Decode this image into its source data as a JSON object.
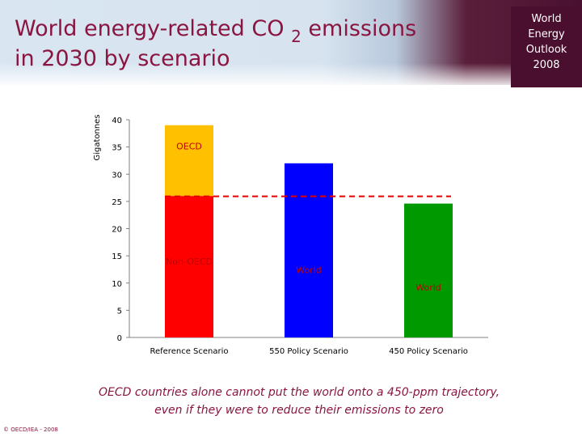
{
  "slide": {
    "title_part1": "World energy-related CO",
    "title_subscript": "2",
    "title_part2": "emissions",
    "title_line2": "in 2030 by scenario",
    "badge_lines": [
      "World",
      "Energy",
      "Outlook",
      "2008"
    ],
    "caption_line1": "OECD countries alone cannot put the world onto a 450-ppm trajectory,",
    "caption_line2": "even if they were to reduce their emissions to zero",
    "copyright": "© OECD/IEA - 2008",
    "colors": {
      "title": "#8a1540",
      "badge": "#4a0f2e",
      "non_oecd": "#ff0000",
      "oecd": "#ffc000",
      "world_550": "#0000ff",
      "world_450": "#009900",
      "reference_line": "#e00000"
    }
  },
  "chart_data": {
    "type": "bar",
    "title": "",
    "ylabel": "Gigatonnes",
    "xlabel": "",
    "ylim": [
      0,
      40
    ],
    "yticks": [
      0,
      5,
      10,
      15,
      20,
      25,
      30,
      35,
      40
    ],
    "grid": false,
    "categories": [
      "Reference Scenario",
      "550 Policy Scenario",
      "450 Policy Scenario"
    ],
    "stacks": [
      {
        "category": "Reference Scenario",
        "segments": [
          {
            "label": "Non-OECD",
            "value": 26,
            "color": "#ff0000"
          },
          {
            "label": "OECD",
            "value": 13,
            "color": "#ffc000"
          }
        ]
      },
      {
        "category": "550 Policy Scenario",
        "segments": [
          {
            "label": "World",
            "value": 32,
            "color": "#0000ff"
          }
        ]
      },
      {
        "category": "450 Policy Scenario",
        "segments": [
          {
            "label": "World",
            "value": 24.6,
            "color": "#009900"
          }
        ]
      }
    ],
    "reference_line": {
      "value": 26,
      "style": "dashed",
      "color": "#e00000"
    }
  }
}
